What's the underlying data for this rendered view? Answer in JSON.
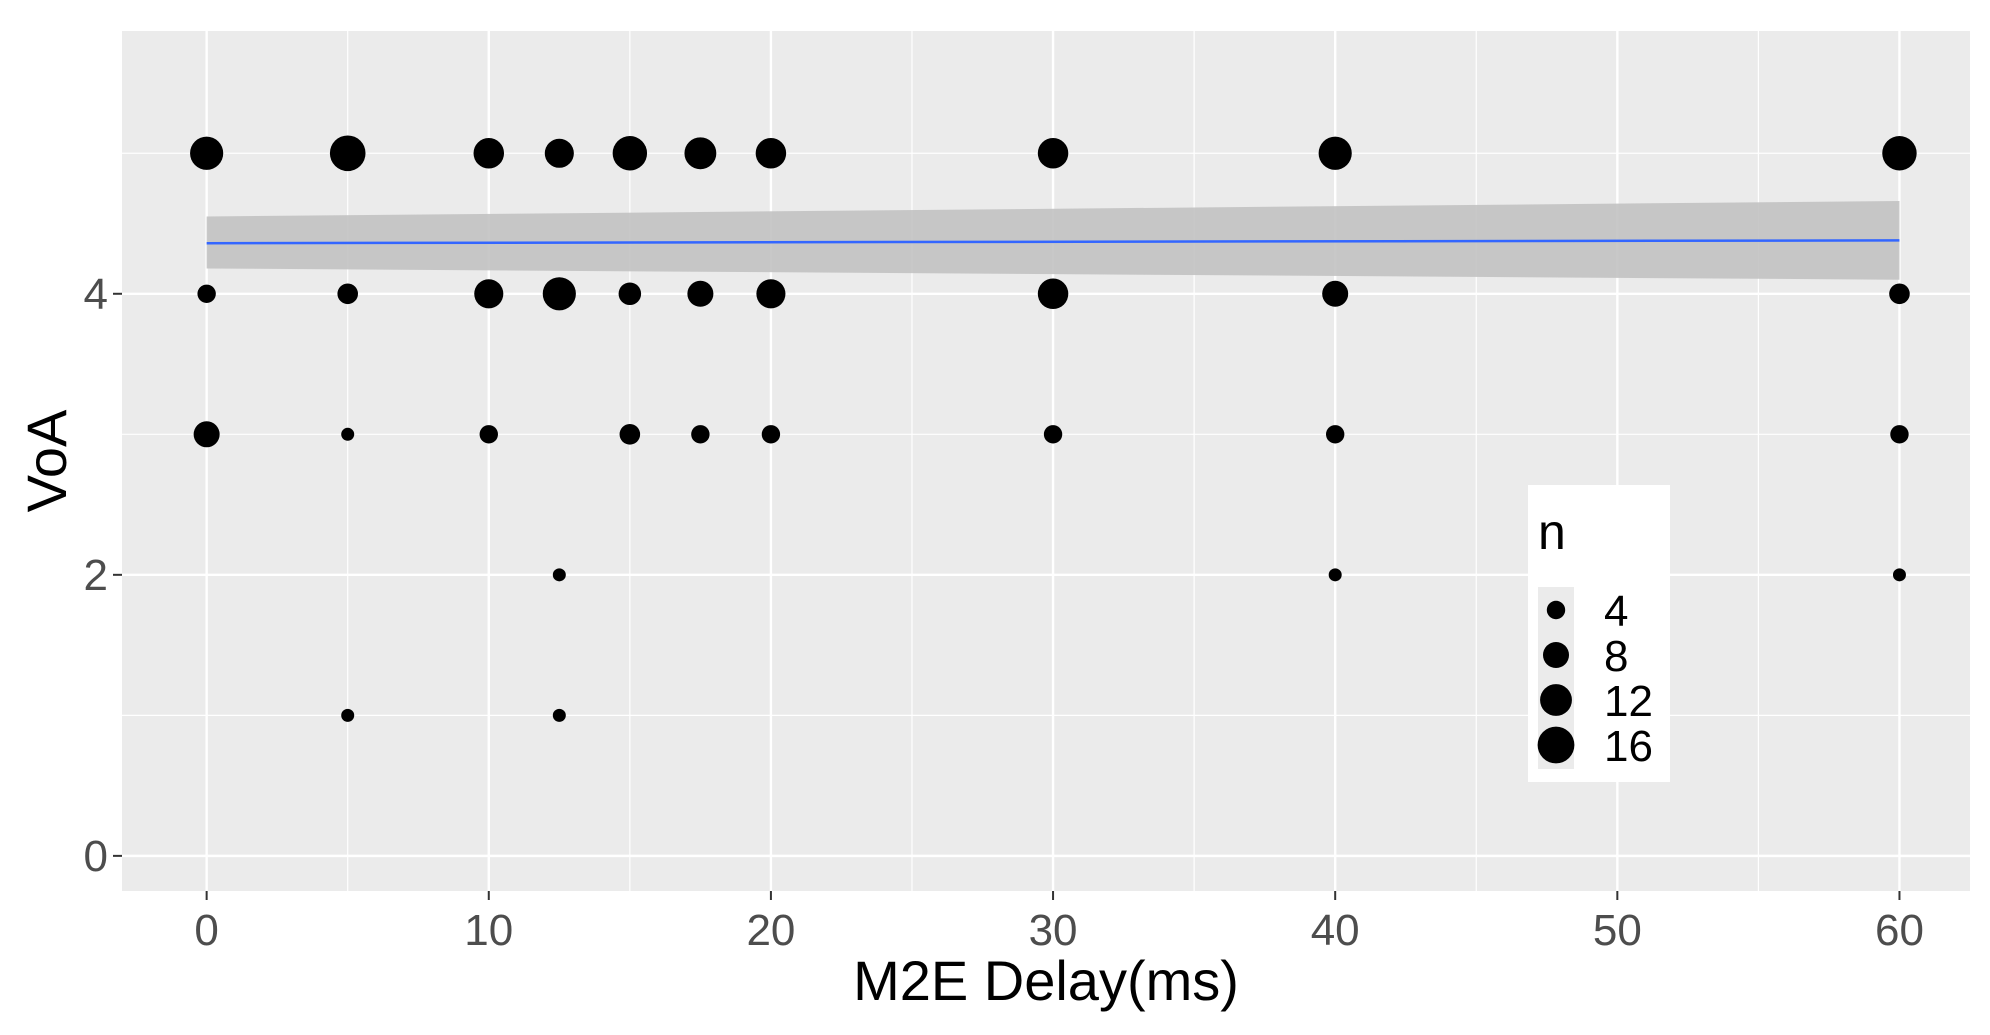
{
  "chart_data": {
    "type": "scatter",
    "title": "",
    "xlabel": "M2E Delay(ms)",
    "ylabel": "VoA",
    "xlim": [
      -3,
      62.5
    ],
    "ylim": [
      -0.25,
      5.87
    ],
    "x_ticks": [
      0,
      10,
      20,
      30,
      40,
      50,
      60
    ],
    "x_tick_labels": [
      "0",
      "10",
      "20",
      "30",
      "40",
      "50",
      "60"
    ],
    "y_ticks": [
      0,
      2,
      4
    ],
    "y_tick_labels": [
      "0",
      "2",
      "4"
    ],
    "grid": true,
    "point_color": "#000000",
    "panel_color": "#ebebeb",
    "grid_color": "#ffffff",
    "size_variable": "n",
    "points": [
      {
        "x": 0,
        "y": 5,
        "n": 13
      },
      {
        "x": 5,
        "y": 5,
        "n": 15
      },
      {
        "x": 10,
        "y": 5,
        "n": 11
      },
      {
        "x": 12.5,
        "y": 5,
        "n": 10
      },
      {
        "x": 15,
        "y": 5,
        "n": 14
      },
      {
        "x": 17.5,
        "y": 5,
        "n": 12
      },
      {
        "x": 20,
        "y": 5,
        "n": 11
      },
      {
        "x": 30,
        "y": 5,
        "n": 11
      },
      {
        "x": 40,
        "y": 5,
        "n": 13
      },
      {
        "x": 60,
        "y": 5,
        "n": 14
      },
      {
        "x": 0,
        "y": 4,
        "n": 4
      },
      {
        "x": 5,
        "y": 4,
        "n": 5
      },
      {
        "x": 10,
        "y": 4,
        "n": 10
      },
      {
        "x": 12.5,
        "y": 4,
        "n": 13
      },
      {
        "x": 15,
        "y": 4,
        "n": 6
      },
      {
        "x": 17.5,
        "y": 4,
        "n": 8
      },
      {
        "x": 20,
        "y": 4,
        "n": 10
      },
      {
        "x": 30,
        "y": 4,
        "n": 11
      },
      {
        "x": 40,
        "y": 4,
        "n": 8
      },
      {
        "x": 60,
        "y": 4,
        "n": 5
      },
      {
        "x": 0,
        "y": 3,
        "n": 8
      },
      {
        "x": 5,
        "y": 3,
        "n": 2
      },
      {
        "x": 10,
        "y": 3,
        "n": 4
      },
      {
        "x": 15,
        "y": 3,
        "n": 5
      },
      {
        "x": 17.5,
        "y": 3,
        "n": 4
      },
      {
        "x": 20,
        "y": 3,
        "n": 4
      },
      {
        "x": 30,
        "y": 3,
        "n": 4
      },
      {
        "x": 40,
        "y": 3,
        "n": 4
      },
      {
        "x": 60,
        "y": 3,
        "n": 4
      },
      {
        "x": 12.5,
        "y": 2,
        "n": 2
      },
      {
        "x": 40,
        "y": 2,
        "n": 2
      },
      {
        "x": 60,
        "y": 2,
        "n": 2
      },
      {
        "x": 5,
        "y": 1,
        "n": 2
      },
      {
        "x": 12.5,
        "y": 1,
        "n": 2
      }
    ],
    "smooth": {
      "method": "lm",
      "color": "#3366ff",
      "band_color": "#c2c2c2",
      "x_range": [
        0,
        60
      ],
      "fit_y": [
        4.36,
        4.38
      ],
      "ci_lower": [
        4.18,
        4.1
      ],
      "ci_upper": [
        4.55,
        4.66
      ]
    },
    "legend": {
      "title": "n",
      "placement": "inside-bottom-right",
      "entries": [
        {
          "label": "4",
          "n": 4
        },
        {
          "label": "8",
          "n": 8
        },
        {
          "label": "12",
          "n": 12
        },
        {
          "label": "16",
          "n": 16
        }
      ]
    }
  }
}
